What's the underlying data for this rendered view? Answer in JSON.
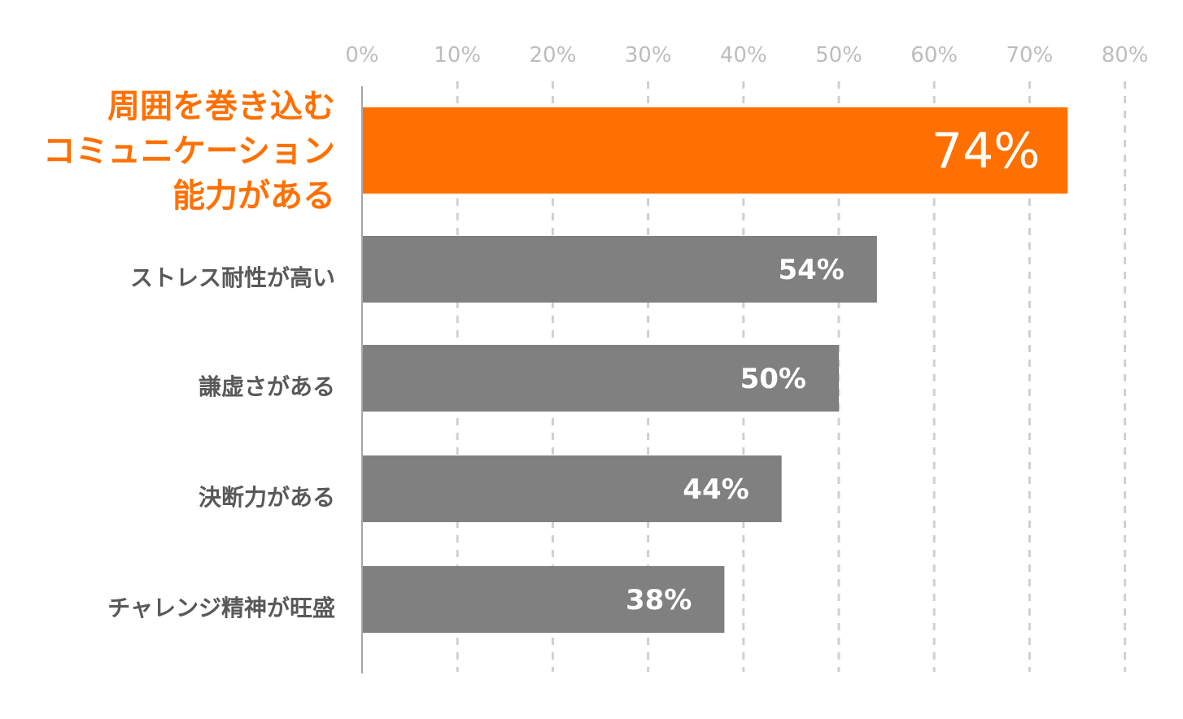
{
  "chart_data": {
    "type": "bar",
    "orientation": "horizontal",
    "categories": [
      [
        "周囲を巻き込む",
        "コミュニケーション",
        "能力がある"
      ],
      [
        "ストレス耐性が高い"
      ],
      [
        "謙虚さがある"
      ],
      [
        "決断力がある"
      ],
      [
        "チャレンジ精神が旺盛"
      ]
    ],
    "values": [
      74,
      54,
      50,
      44,
      38
    ],
    "value_labels": [
      "74%",
      "54%",
      "50%",
      "44%",
      "38%"
    ],
    "xlim": [
      0,
      80
    ],
    "xticks": [
      "0%",
      "10%",
      "20%",
      "30%",
      "40%",
      "50%",
      "60%",
      "70%",
      "80%"
    ],
    "xtick_values": [
      0,
      10,
      20,
      30,
      40,
      50,
      60,
      70,
      80
    ],
    "axis_position": "top",
    "grid": "vertical dashed",
    "highlight_index": 0,
    "colors": {
      "highlight": "#ff7000",
      "default": "#808080",
      "grid": "#d0d0d0",
      "axis": "#a6a6a6",
      "tick": "#bdbdbd",
      "label": "#595959"
    }
  }
}
